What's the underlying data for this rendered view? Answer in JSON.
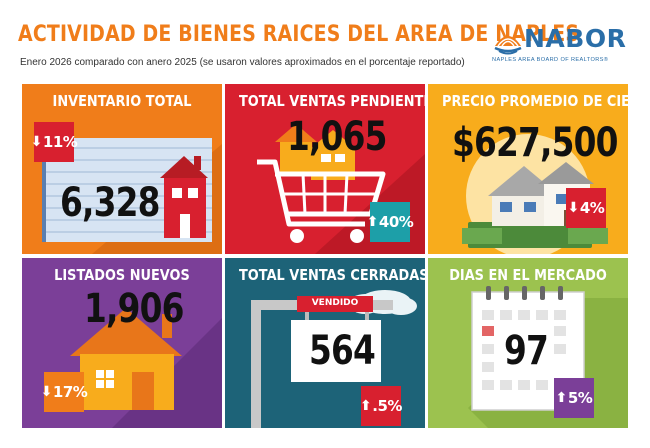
{
  "header": {
    "title": "ACTIVIDAD DE BIENES RAICES DEL AREA DE NAPLES",
    "subtitle": "Enero 2026 comparado con anero 2025 (se usaron valores aproximados en el porcentaje reportado)"
  },
  "logo": {
    "wordmark": "NABOR",
    "tagline": "NAPLES AREA BOARD OF REALTORS®"
  },
  "colors": {
    "orange": "#f07d1a",
    "red": "#d8202f",
    "yellow": "#f8ac1c",
    "purple": "#7b3f98",
    "teal": "#1d6378",
    "green": "#9cc24f"
  },
  "tiles": [
    {
      "label": "INVENTARIO TOTAL",
      "value": "6,328",
      "change": "11%",
      "direction": "down",
      "icon": "house-icon"
    },
    {
      "label": "TOTAL VENTAS PENDIENTES",
      "value": "1,065",
      "change": "40%",
      "direction": "up",
      "icon": "shopping-cart-icon"
    },
    {
      "label": "PRECIO PROMEDIO DE CIERRE",
      "value": "$627,500",
      "change": "4%",
      "direction": "down",
      "icon": "house-money-icon"
    },
    {
      "label": "LISTADOS NUEVOS",
      "value": "1,906",
      "change": "17%",
      "direction": "down",
      "icon": "house-icon"
    },
    {
      "label": "TOTAL VENTAS CERRADAS",
      "value": "564",
      "change": ".5%",
      "direction": "up",
      "icon": "sold-sign-icon",
      "sign_text": "VENDIDO"
    },
    {
      "label": "DIAS EN EL MERCADO",
      "value": "97",
      "change": "5%",
      "direction": "up",
      "icon": "calendar-icon"
    }
  ]
}
